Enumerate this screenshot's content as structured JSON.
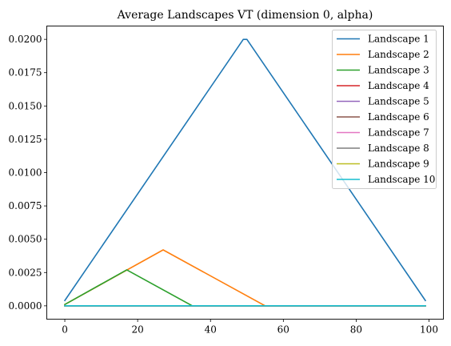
{
  "chart_data": {
    "type": "line",
    "title": "Average Landscapes VT (dimension 0, alpha)",
    "xlabel": "",
    "ylabel": "",
    "xlim": [
      -4.95,
      103.95
    ],
    "ylim": [
      -0.001,
      0.021
    ],
    "xticks": [
      0,
      20,
      40,
      60,
      80,
      100
    ],
    "xtick_labels": [
      "0",
      "20",
      "40",
      "60",
      "80",
      "100"
    ],
    "yticks": [
      0.0,
      0.0025,
      0.005,
      0.0075,
      0.01,
      0.0125,
      0.015,
      0.0175,
      0.02
    ],
    "ytick_labels": [
      "0.0000",
      "0.0025",
      "0.0050",
      "0.0075",
      "0.0100",
      "0.0125",
      "0.0150",
      "0.0175",
      "0.0200"
    ],
    "grid": false,
    "legend_position": "top-right",
    "series": [
      {
        "name": "Landscape 1",
        "color": "#1f77b4",
        "points": [
          [
            0,
            0.0004
          ],
          [
            49,
            0.02
          ],
          [
            50,
            0.02
          ],
          [
            99,
            0.0004
          ]
        ]
      },
      {
        "name": "Landscape 2",
        "color": "#ff7f0e",
        "points": [
          [
            0,
            0.0001
          ],
          [
            27,
            0.0042
          ],
          [
            55,
            0.0
          ],
          [
            99,
            0.0
          ]
        ]
      },
      {
        "name": "Landscape 3",
        "color": "#2ca02c",
        "points": [
          [
            0,
            0.0001
          ],
          [
            17,
            0.0027
          ],
          [
            35,
            0.0
          ],
          [
            99,
            0.0
          ]
        ]
      },
      {
        "name": "Landscape 4",
        "color": "#d62728",
        "points": [
          [
            0,
            0.0
          ],
          [
            99,
            0.0
          ]
        ]
      },
      {
        "name": "Landscape 5",
        "color": "#9467bd",
        "points": [
          [
            0,
            0.0
          ],
          [
            99,
            0.0
          ]
        ]
      },
      {
        "name": "Landscape 6",
        "color": "#8c564b",
        "points": [
          [
            0,
            0.0
          ],
          [
            99,
            0.0
          ]
        ]
      },
      {
        "name": "Landscape 7",
        "color": "#e377c2",
        "points": [
          [
            0,
            0.0
          ],
          [
            99,
            0.0
          ]
        ]
      },
      {
        "name": "Landscape 8",
        "color": "#7f7f7f",
        "points": [
          [
            0,
            0.0
          ],
          [
            99,
            0.0
          ]
        ]
      },
      {
        "name": "Landscape 9",
        "color": "#bcbd22",
        "points": [
          [
            0,
            0.0
          ],
          [
            99,
            0.0
          ]
        ]
      },
      {
        "name": "Landscape 10",
        "color": "#17becf",
        "points": [
          [
            0,
            0.0
          ],
          [
            99,
            0.0
          ]
        ]
      }
    ]
  }
}
